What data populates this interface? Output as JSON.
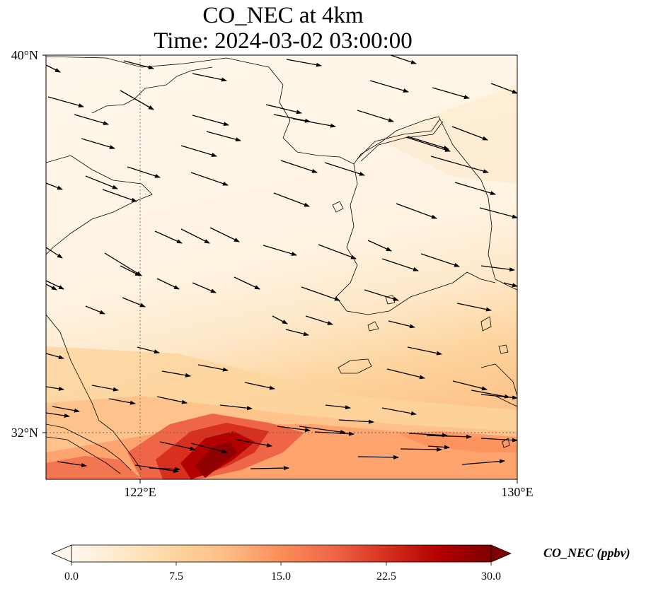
{
  "title": {
    "line1": "CO_NEC at 4km",
    "line2": "Time: 2024-03-02 03:00:00"
  },
  "map": {
    "lat_labels": [
      "40°N",
      "32°N"
    ],
    "lon_labels": [
      "122°E",
      "130°E"
    ],
    "gridlines": "dotted at 32°N and 122°E",
    "coastline_color": "#000000",
    "wind_vectors": "black arrows, predominantly west-to-east / east-southeast",
    "high_concentration_region": "southwest near 31-32°N, 122-126°E"
  },
  "colorbar": {
    "label": "CO_NEC (ppbv)",
    "ticks": [
      "0.0",
      "7.5",
      "15.0",
      "22.5",
      "30.0"
    ],
    "min": 0.0,
    "max": 30.0,
    "colormap": "OrRd",
    "extend": "both",
    "colors": [
      "#fff7ec",
      "#fee8c8",
      "#fdd49e",
      "#fdbb84",
      "#fc8d59",
      "#ef6548",
      "#d7301f",
      "#b30000",
      "#7f0000"
    ]
  }
}
